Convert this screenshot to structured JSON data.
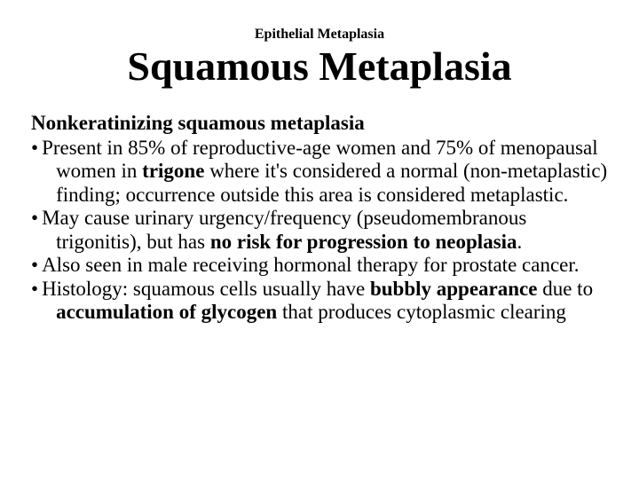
{
  "supertitle": "Epithelial Metaplasia",
  "title": "Squamous Metaplasia",
  "subheading": "Nonkeratinizing squamous metaplasia",
  "bullets": [
    {
      "pre": "Present in 85% of reproductive-age women and 75% of menopausal women in ",
      "bold1": "trigone",
      "post": " where it's considered a normal (non-metaplastic) finding; occurrence outside this area is considered metaplastic."
    },
    {
      "pre": "May cause urinary urgency/frequency (pseudomembranous trigonitis), but has ",
      "bold1": "no risk for progression to neoplasia",
      "post": "."
    },
    {
      "pre": "Also seen in male receiving hormonal therapy for prostate cancer.",
      "bold1": "",
      "post": ""
    },
    {
      "pre": "Histology: squamous cells usually have ",
      "bold1": "bubbly appearance",
      "mid": " due to ",
      "bold2": "accumulation of glycogen",
      "post": " that produces cytoplasmic clearing"
    }
  ],
  "bullet_marker": "•"
}
